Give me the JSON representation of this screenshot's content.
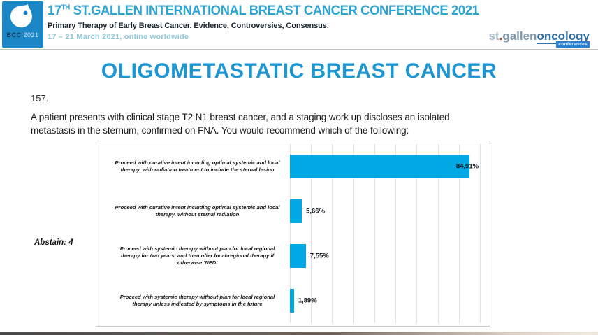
{
  "header": {
    "logo": {
      "bcc": "BCC",
      "year": "2021"
    },
    "title_num": "17",
    "title_sup": "TH",
    "title_rest": " ST.GALLEN INTERNATIONAL BREAST CANCER CONFERENCE 2021",
    "subtitle": "Primary Therapy of Early Breast Cancer. Evidence, Controversies, Consensus.",
    "dates": "17 – 21 March 2021, online worldwide",
    "right_logo": {
      "st": "st",
      "dot": ".",
      "gallen": "gallen",
      "oncology": "oncology",
      "badge": "conferences"
    }
  },
  "slide": {
    "title": "OLIGOMETASTATIC BREAST CANCER",
    "question_number": "157.",
    "question_line1": "A patient presents with clinical stage T2 N1 breast cancer, and a staging work up discloses an isolated",
    "question_line2": "metastasis in the sternum, confirmed on FNA.  You would recommend which of the following:",
    "abstain_label": "Abstain: 4"
  },
  "colors": {
    "accent_bar": "#00A9E4",
    "title_blue": "#1D96D4",
    "header_cyan": "#2BA4D3"
  },
  "chart_data": {
    "type": "bar",
    "orientation": "horizontal",
    "title": "",
    "xlabel": "",
    "ylabel": "",
    "categories": [
      "Proceed with curative intent including optimal systemic and local therapy, with radiation treatment to include the sternal lesion",
      "Proceed with curative intent including optimal systemic and local therapy, without sternal radiation",
      "Proceed with systemic therapy without plan for local regional therapy for two years, and then offer local-regional therapy if otherwise 'NED'",
      "Proceed with systemic therapy without plan for local regional therapy unless indicated by symptoms in the future"
    ],
    "values": [
      84.91,
      5.66,
      7.55,
      1.89
    ],
    "value_labels": [
      "84,91%",
      "5,66%",
      "7,55%",
      "1,89%"
    ],
    "axis_max": 93,
    "gridline_step": 10,
    "grid": true,
    "legend": false,
    "bar_color": "#00A9E4",
    "annotation": "Abstain: 4"
  }
}
